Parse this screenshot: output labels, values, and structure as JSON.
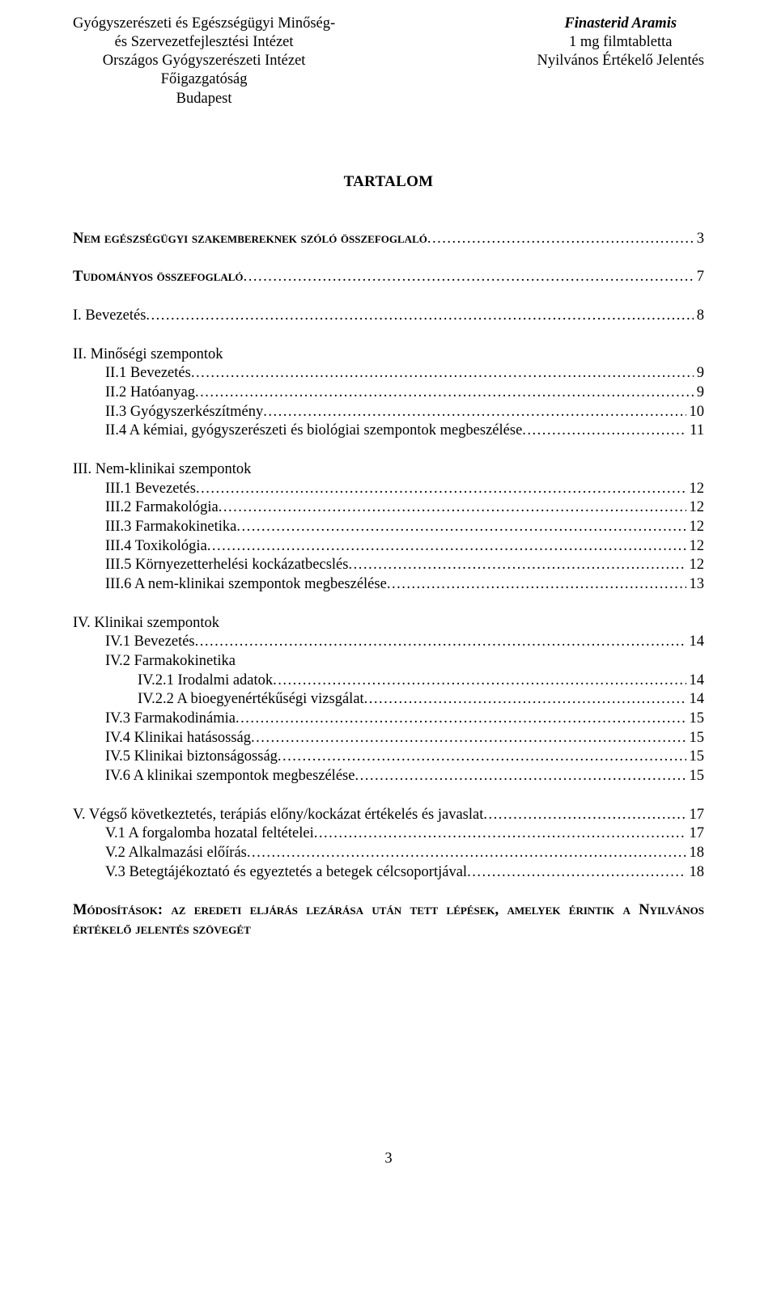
{
  "header": {
    "left": [
      "Gyógyszerészeti és Egészségügyi Minőség-",
      "és Szervezetfejlesztési Intézet",
      "Országos Gyógyszerészeti Intézet",
      "Főigazgatóság",
      "Budapest"
    ],
    "right": [
      "Finasterid Aramis",
      "1 mg filmtabletta",
      "Nyilvános Értékelő Jelentés"
    ]
  },
  "title": "TARTALOM",
  "toc": [
    {
      "type": "row",
      "indent": 0,
      "label": "Nem egészségügyi szakembereknek szóló összefoglaló",
      "sc": true,
      "page": "3"
    },
    {
      "type": "gap-lg"
    },
    {
      "type": "row",
      "indent": 0,
      "label": "Tudományos összefoglaló",
      "sc": true,
      "page": "7"
    },
    {
      "type": "gap-lg"
    },
    {
      "type": "head",
      "indent": 0,
      "label": "I. Bevezetés",
      "page": "8"
    },
    {
      "type": "gap-lg"
    },
    {
      "type": "head",
      "indent": 0,
      "label": "II. Minőségi szempontok",
      "noPage": true
    },
    {
      "type": "row",
      "indent": 1,
      "label": "II.1 Bevezetés",
      "page": "9"
    },
    {
      "type": "row",
      "indent": 1,
      "label": "II.2 Hatóanyag",
      "page": "9"
    },
    {
      "type": "row",
      "indent": 1,
      "label": "II.3 Gyógyszerkészítmény",
      "page": "10"
    },
    {
      "type": "row",
      "indent": 1,
      "label": "II.4 A kémiai, gyógyszerészeti és biológiai szempontok megbeszélése",
      "page": "11"
    },
    {
      "type": "gap-lg"
    },
    {
      "type": "head",
      "indent": 0,
      "label": "III. Nem-klinikai szempontok",
      "noPage": true
    },
    {
      "type": "row",
      "indent": 1,
      "label": "III.1 Bevezetés",
      "page": "12"
    },
    {
      "type": "row",
      "indent": 1,
      "label": "III.2 Farmakológia",
      "page": "12"
    },
    {
      "type": "row",
      "indent": 1,
      "label": "III.3 Farmakokinetika",
      "page": "12"
    },
    {
      "type": "row",
      "indent": 1,
      "label": "III.4 Toxikológia",
      "page": "12"
    },
    {
      "type": "row",
      "indent": 1,
      "label": "III.5 Környezetterhelési kockázatbecslés",
      "page": "12"
    },
    {
      "type": "row",
      "indent": 1,
      "label": "III.6 A nem-klinikai szempontok megbeszélése",
      "page": "13"
    },
    {
      "type": "gap-lg"
    },
    {
      "type": "head",
      "indent": 0,
      "label": "IV. Klinikai szempontok",
      "noPage": true
    },
    {
      "type": "row",
      "indent": 1,
      "label": "IV.1 Bevezetés",
      "page": "14"
    },
    {
      "type": "head",
      "indent": 1,
      "label": "IV.2 Farmakokinetika",
      "noPage": true
    },
    {
      "type": "row",
      "indent": 2,
      "label": "IV.2.1 Irodalmi adatok",
      "page": "14"
    },
    {
      "type": "row",
      "indent": 2,
      "label": "IV.2.2 A bioegyenértékűségi vizsgálat",
      "page": "14"
    },
    {
      "type": "row",
      "indent": 1,
      "label": "IV.3 Farmakodinámia",
      "page": "15"
    },
    {
      "type": "row",
      "indent": 1,
      "label": "IV.4 Klinikai hatásosság",
      "page": "15"
    },
    {
      "type": "row",
      "indent": 1,
      "label": "IV.5 Klinikai biztonságosság",
      "page": "15"
    },
    {
      "type": "row",
      "indent": 1,
      "label": "IV.6 A klinikai szempontok megbeszélése",
      "page": "15"
    },
    {
      "type": "gap-lg"
    },
    {
      "type": "head",
      "indent": 0,
      "label": "V. Végső következtetés, terápiás előny/kockázat értékelés és javaslat",
      "page": "17"
    },
    {
      "type": "row",
      "indent": 1,
      "label": "V.1 A forgalomba hozatal feltételei",
      "page": "17"
    },
    {
      "type": "row",
      "indent": 1,
      "label": "V.2 Alkalmazási előírás",
      "page": "18"
    },
    {
      "type": "row",
      "indent": 1,
      "label": "V.3 Betegtájékoztató és egyeztetés a betegek célcsoportjával",
      "page": "18"
    }
  ],
  "footer": "Módosítások: az eredeti eljárás lezárása után tett lépések, amelyek érintik a Nyilvános értékelő jelentés szövegét",
  "pageNumber": "3"
}
